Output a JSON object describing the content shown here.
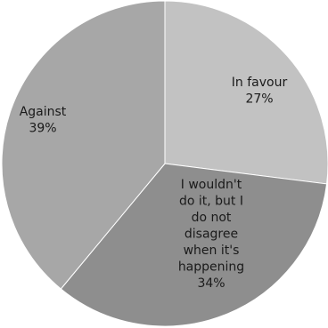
{
  "chart_data": {
    "type": "pie",
    "slices": [
      {
        "label_lines": [
          "In favour"
        ],
        "value": 27,
        "value_label": "27%",
        "color": "#c2c2c2"
      },
      {
        "label_lines": [
          "I wouldn't",
          "do it, but I",
          "do not",
          "disagree",
          "when it's",
          "happening"
        ],
        "value": 34,
        "value_label": "34%",
        "color": "#8e8e8e"
      },
      {
        "label_lines": [
          "Against"
        ],
        "value": 39,
        "value_label": "39%",
        "color": "#a7a7a7"
      }
    ],
    "start_angle_deg": 0,
    "direction": "clockwise",
    "legend": "none"
  }
}
